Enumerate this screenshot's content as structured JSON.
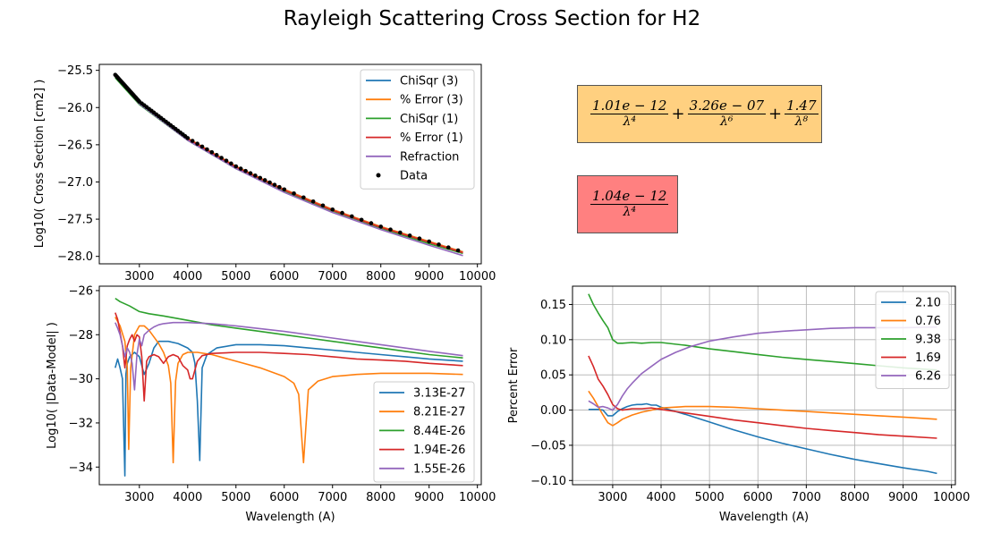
{
  "figure": {
    "title": "Rayleigh Scattering Cross Section for H2"
  },
  "formulas": {
    "box1": {
      "color": "#ffd080",
      "terms": [
        {
          "coef": "1.01e − 12",
          "power": "λ⁴"
        },
        {
          "coef": "3.26e − 07",
          "power": "λ⁶"
        },
        {
          "coef": "1.47",
          "power": "λ⁸"
        }
      ]
    },
    "box2": {
      "color": "#ff8080",
      "terms": [
        {
          "coef": "1.04e − 12",
          "power": "λ⁴"
        }
      ]
    }
  },
  "chart_data": [
    {
      "id": "top-left",
      "type": "line",
      "title": "",
      "xlabel": "",
      "ylabel": "Log10( Cross Section [cm2] )",
      "xlim": [
        2170,
        10080
      ],
      "ylim": [
        -28.1,
        -25.42
      ],
      "xticks": [
        3000,
        4000,
        5000,
        6000,
        7000,
        8000,
        9000,
        10000
      ],
      "yticks": [
        -25.5,
        -26.0,
        -26.5,
        -27.0,
        -27.5,
        -28.0
      ],
      "ytick_labels": [
        "−25.5",
        "−26.0",
        "−26.5",
        "−27.0",
        "−27.5",
        "−28.0"
      ],
      "grid": false,
      "legend": "top-right",
      "series": [
        {
          "name": "ChiSqr (3)",
          "color": "#1f77b4",
          "x": [
            2500,
            3000,
            4000,
            5000,
            6000,
            7000,
            8000,
            9000,
            9700
          ],
          "y": [
            -25.56,
            -25.92,
            -26.41,
            -26.79,
            -27.1,
            -27.37,
            -27.6,
            -27.8,
            -27.94
          ]
        },
        {
          "name": "% Error (3)",
          "color": "#ff7f0e",
          "x": [
            2500,
            3000,
            4000,
            5000,
            6000,
            7000,
            8000,
            9000,
            9700
          ],
          "y": [
            -25.56,
            -25.92,
            -26.41,
            -26.79,
            -27.1,
            -27.37,
            -27.6,
            -27.8,
            -27.94
          ]
        },
        {
          "name": "ChiSqr (1)",
          "color": "#2ca02c",
          "x": [
            2500,
            3000,
            4000,
            5000,
            6000,
            7000,
            8000,
            9000,
            9700
          ],
          "y": [
            -25.6,
            -25.96,
            -26.44,
            -26.82,
            -27.13,
            -27.39,
            -27.62,
            -27.83,
            -27.96
          ]
        },
        {
          "name": "% Error (1)",
          "color": "#d62728",
          "x": [
            2500,
            3000,
            4000,
            5000,
            6000,
            7000,
            8000,
            9000,
            9700
          ],
          "y": [
            -25.57,
            -25.93,
            -26.42,
            -26.8,
            -27.11,
            -27.38,
            -27.61,
            -27.81,
            -27.95
          ]
        },
        {
          "name": "Refraction",
          "color": "#9467bd",
          "x": [
            2500,
            3000,
            4000,
            5000,
            6000,
            7000,
            8000,
            9000,
            9700
          ],
          "y": [
            -25.57,
            -25.95,
            -26.44,
            -26.82,
            -27.14,
            -27.41,
            -27.64,
            -27.85,
            -27.99
          ]
        }
      ],
      "points": {
        "name": "Data",
        "color": "#000000"
      }
    },
    {
      "id": "bottom-left",
      "type": "line",
      "title": "",
      "xlabel": "Wavelength (A)",
      "ylabel": "Log10( |Data-Model| )",
      "xlim": [
        2170,
        10080
      ],
      "ylim": [
        -34.8,
        -25.8
      ],
      "xticks": [
        3000,
        4000,
        5000,
        6000,
        7000,
        8000,
        9000,
        10000
      ],
      "yticks": [
        -26,
        -28,
        -30,
        -32,
        -34
      ],
      "ytick_labels": [
        "−26",
        "−28",
        "−30",
        "−32",
        "−34"
      ],
      "grid": false,
      "legend": "bottom-right",
      "series": [
        {
          "name": "3.13E-27",
          "color": "#1f77b4",
          "x": [
            2500,
            2550,
            2600,
            2650,
            2700,
            2720,
            2750,
            2800,
            2900,
            3000,
            3100,
            3200,
            3300,
            3400,
            3600,
            3800,
            3900,
            4000,
            4100,
            4150,
            4200,
            4250,
            4300,
            4400,
            4600,
            5000,
            5500,
            6000,
            6500,
            7000,
            7500,
            8000,
            8500,
            9000,
            9700
          ],
          "y": [
            -29.5,
            -29.1,
            -29.5,
            -30.0,
            -34.4,
            -29.8,
            -29.3,
            -29.0,
            -28.8,
            -29.0,
            -29.8,
            -29.3,
            -28.6,
            -28.3,
            -28.3,
            -28.4,
            -28.5,
            -28.6,
            -28.8,
            -29.3,
            -31.0,
            -33.7,
            -29.5,
            -28.9,
            -28.6,
            -28.45,
            -28.45,
            -28.5,
            -28.6,
            -28.7,
            -28.8,
            -28.9,
            -29.0,
            -29.1,
            -29.2
          ]
        },
        {
          "name": "8.21E-27",
          "color": "#ff7f0e",
          "x": [
            2500,
            2600,
            2700,
            2750,
            2780,
            2820,
            2900,
            3000,
            3100,
            3200,
            3300,
            3400,
            3500,
            3600,
            3650,
            3700,
            3750,
            3800,
            3900,
            4000,
            4200,
            4500,
            5000,
            5500,
            6000,
            6200,
            6300,
            6400,
            6500,
            6700,
            7000,
            7500,
            8000,
            9000,
            9700
          ],
          "y": [
            -27.2,
            -27.6,
            -28.3,
            -29.5,
            -33.2,
            -29.5,
            -28.0,
            -27.6,
            -27.6,
            -27.8,
            -28.1,
            -28.4,
            -28.8,
            -29.4,
            -30.2,
            -33.8,
            -30.1,
            -29.3,
            -28.9,
            -28.8,
            -28.8,
            -28.9,
            -29.2,
            -29.5,
            -29.9,
            -30.2,
            -30.7,
            -33.8,
            -30.5,
            -30.1,
            -29.9,
            -29.8,
            -29.75,
            -29.75,
            -29.8
          ]
        },
        {
          "name": "8.44E-26",
          "color": "#2ca02c",
          "x": [
            2500,
            2600,
            2800,
            3000,
            3200,
            3500,
            4000,
            4500,
            5000,
            5500,
            6000,
            6500,
            7000,
            7500,
            8000,
            8500,
            9000,
            9700
          ],
          "y": [
            -26.35,
            -26.5,
            -26.7,
            -26.95,
            -27.05,
            -27.15,
            -27.35,
            -27.55,
            -27.7,
            -27.85,
            -28.0,
            -28.15,
            -28.3,
            -28.45,
            -28.6,
            -28.75,
            -28.9,
            -29.05
          ]
        },
        {
          "name": "1.94E-26",
          "color": "#d62728",
          "x": [
            2500,
            2550,
            2600,
            2650,
            2700,
            2750,
            2800,
            2850,
            2900,
            2950,
            3000,
            3050,
            3100,
            3150,
            3200,
            3300,
            3400,
            3500,
            3600,
            3700,
            3800,
            3900,
            4000,
            4050,
            4100,
            4150,
            4200,
            4300,
            4500,
            5000,
            5500,
            6000,
            6500,
            7000,
            7500,
            8000,
            8500,
            9000,
            9700
          ],
          "y": [
            -27.0,
            -27.3,
            -27.9,
            -28.5,
            -29.5,
            -28.5,
            -28.2,
            -28.0,
            -28.3,
            -28.0,
            -28.1,
            -29.0,
            -31.0,
            -29.2,
            -29.0,
            -28.9,
            -29.0,
            -29.3,
            -29.0,
            -28.9,
            -29.0,
            -29.4,
            -29.6,
            -30.0,
            -30.0,
            -29.6,
            -29.2,
            -28.95,
            -28.85,
            -28.8,
            -28.8,
            -28.85,
            -28.9,
            -29.0,
            -29.1,
            -29.15,
            -29.2,
            -29.3,
            -29.4
          ]
        },
        {
          "name": "1.55E-26",
          "color": "#9467bd",
          "x": [
            2500,
            2550,
            2600,
            2650,
            2700,
            2750,
            2800,
            2850,
            2900,
            2950,
            3000,
            3050,
            3100,
            3200,
            3300,
            3400,
            3500,
            3700,
            4000,
            4500,
            5000,
            6000,
            7000,
            8000,
            9000,
            9700
          ],
          "y": [
            -27.45,
            -27.7,
            -28.0,
            -28.5,
            -29.0,
            -28.6,
            -28.8,
            -29.3,
            -30.5,
            -28.9,
            -28.2,
            -28.5,
            -28.0,
            -27.8,
            -27.65,
            -27.55,
            -27.5,
            -27.45,
            -27.45,
            -27.5,
            -27.6,
            -27.85,
            -28.15,
            -28.45,
            -28.75,
            -28.95
          ]
        }
      ]
    },
    {
      "id": "bottom-right",
      "type": "line",
      "title": "",
      "xlabel": "Wavelength (A)",
      "ylabel": "Percent Error",
      "xlim": [
        2170,
        10080
      ],
      "ylim": [
        -0.106,
        0.176
      ],
      "xticks": [
        3000,
        4000,
        5000,
        6000,
        7000,
        8000,
        9000,
        10000
      ],
      "yticks": [
        -0.1,
        -0.05,
        0.0,
        0.05,
        0.1,
        0.15
      ],
      "ytick_labels": [
        "−0.10",
        "−0.05",
        "0.00",
        "0.05",
        "0.10",
        "0.15"
      ],
      "grid": true,
      "legend": "top-right",
      "series": [
        {
          "name": "2.10",
          "color": "#1f77b4",
          "x": [
            2500,
            2700,
            2800,
            2900,
            3000,
            3100,
            3200,
            3300,
            3400,
            3500,
            3600,
            3700,
            3800,
            3900,
            4000,
            4200,
            4500,
            5000,
            5500,
            6000,
            6500,
            7000,
            7500,
            8000,
            8500,
            9000,
            9500,
            9700
          ],
          "y": [
            0.001,
            0.001,
            0.0,
            -0.008,
            -0.008,
            -0.002,
            0.002,
            0.005,
            0.007,
            0.008,
            0.008,
            0.009,
            0.007,
            0.007,
            0.004,
            0.0,
            -0.006,
            -0.017,
            -0.028,
            -0.038,
            -0.047,
            -0.055,
            -0.063,
            -0.07,
            -0.076,
            -0.082,
            -0.087,
            -0.09
          ]
        },
        {
          "name": "0.76",
          "color": "#ff7f0e",
          "x": [
            2500,
            2600,
            2700,
            2800,
            2900,
            3000,
            3100,
            3200,
            3400,
            3600,
            3800,
            4000,
            4500,
            5000,
            5500,
            6000,
            6500,
            7000,
            7500,
            8000,
            8500,
            9000,
            9700
          ],
          "y": [
            0.027,
            0.017,
            0.005,
            -0.007,
            -0.018,
            -0.022,
            -0.018,
            -0.013,
            -0.007,
            -0.003,
            0.0,
            0.003,
            0.005,
            0.005,
            0.004,
            0.002,
            0.0,
            -0.002,
            -0.004,
            -0.006,
            -0.008,
            -0.01,
            -0.013
          ]
        },
        {
          "name": "9.38",
          "color": "#2ca02c",
          "x": [
            2500,
            2600,
            2700,
            2800,
            2900,
            3000,
            3100,
            3200,
            3400,
            3600,
            3800,
            4000,
            4500,
            5000,
            5500,
            6000,
            6500,
            7000,
            7500,
            8000,
            8500,
            9000,
            9700
          ],
          "y": [
            0.165,
            0.15,
            0.138,
            0.127,
            0.117,
            0.1,
            0.095,
            0.095,
            0.096,
            0.095,
            0.096,
            0.096,
            0.092,
            0.087,
            0.083,
            0.079,
            0.075,
            0.072,
            0.069,
            0.066,
            0.063,
            0.06,
            0.057
          ]
        },
        {
          "name": "1.69",
          "color": "#d62728",
          "x": [
            2500,
            2600,
            2700,
            2800,
            2900,
            3000,
            3100,
            3200,
            3400,
            3600,
            3800,
            3900,
            4000,
            4500,
            5000,
            5500,
            6000,
            6500,
            7000,
            7500,
            8000,
            8500,
            9000,
            9700
          ],
          "y": [
            0.077,
            0.062,
            0.044,
            0.034,
            0.022,
            0.008,
            0.002,
            0.0,
            0.002,
            0.002,
            0.003,
            0.002,
            0.001,
            -0.004,
            -0.009,
            -0.014,
            -0.018,
            -0.022,
            -0.026,
            -0.029,
            -0.032,
            -0.035,
            -0.037,
            -0.04
          ]
        },
        {
          "name": "6.26",
          "color": "#9467bd",
          "x": [
            2500,
            2600,
            2700,
            2800,
            2900,
            3000,
            3100,
            3200,
            3300,
            3400,
            3500,
            3600,
            3800,
            4000,
            4300,
            4600,
            5000,
            5500,
            6000,
            6500,
            7000,
            7500,
            8000,
            8500,
            9000,
            9700
          ],
          "y": [
            0.013,
            0.009,
            0.004,
            0.005,
            0.003,
            0.0,
            0.008,
            0.02,
            0.03,
            0.038,
            0.045,
            0.052,
            0.062,
            0.072,
            0.082,
            0.09,
            0.098,
            0.104,
            0.109,
            0.112,
            0.114,
            0.116,
            0.117,
            0.117,
            0.117,
            0.118
          ]
        }
      ]
    }
  ]
}
